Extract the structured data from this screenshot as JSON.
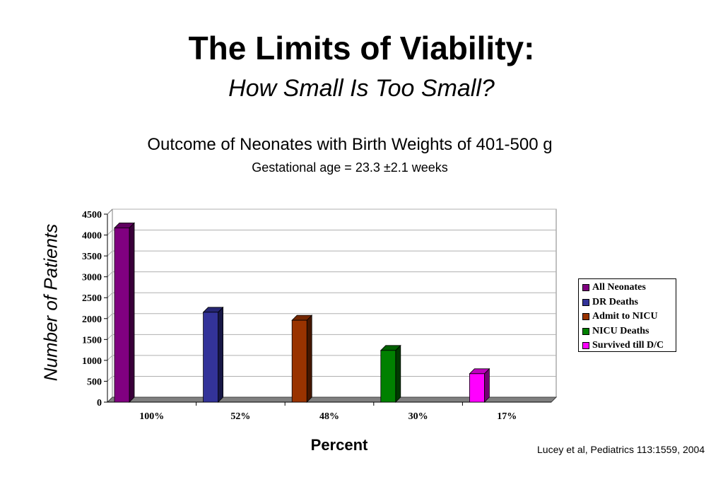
{
  "slide": {
    "title": "The Limits of Viability:",
    "subtitle": "How Small Is Too Small?",
    "citation": "Lucey et al, Pediatrics 113:1559, 2004"
  },
  "chart_data": {
    "type": "bar",
    "title": "Outcome of Neonates with Birth Weights of 401-500 g",
    "subtitle": "Gestational age = 23.3 ±2.1 weeks",
    "xlabel": "Percent",
    "ylabel": "Number of Patients",
    "categories": [
      "100%",
      "52%",
      "48%",
      "30%",
      "17%"
    ],
    "yticks": [
      "0",
      "500",
      "1000",
      "1500",
      "2000",
      "2500",
      "3000",
      "3500",
      "4000",
      "4500"
    ],
    "ylim": [
      0,
      4500
    ],
    "grid": true,
    "three_d": true,
    "legend_position": "right",
    "series": [
      {
        "name": "All Neonates",
        "color": "#800080",
        "values": [
          4172,
          null,
          null,
          null,
          null
        ]
      },
      {
        "name": "DR Deaths",
        "color": "#333399",
        "values": [
          null,
          2152,
          null,
          null,
          null
        ]
      },
      {
        "name": "Admit to NICU",
        "color": "#993300",
        "values": [
          null,
          null,
          1960,
          null,
          null
        ]
      },
      {
        "name": "NICU Deaths",
        "color": "#008000",
        "values": [
          null,
          null,
          null,
          1238,
          null
        ]
      },
      {
        "name": "Survived till D/C",
        "color": "#ff00ff",
        "values": [
          null,
          null,
          null,
          null,
          680
        ]
      }
    ]
  }
}
